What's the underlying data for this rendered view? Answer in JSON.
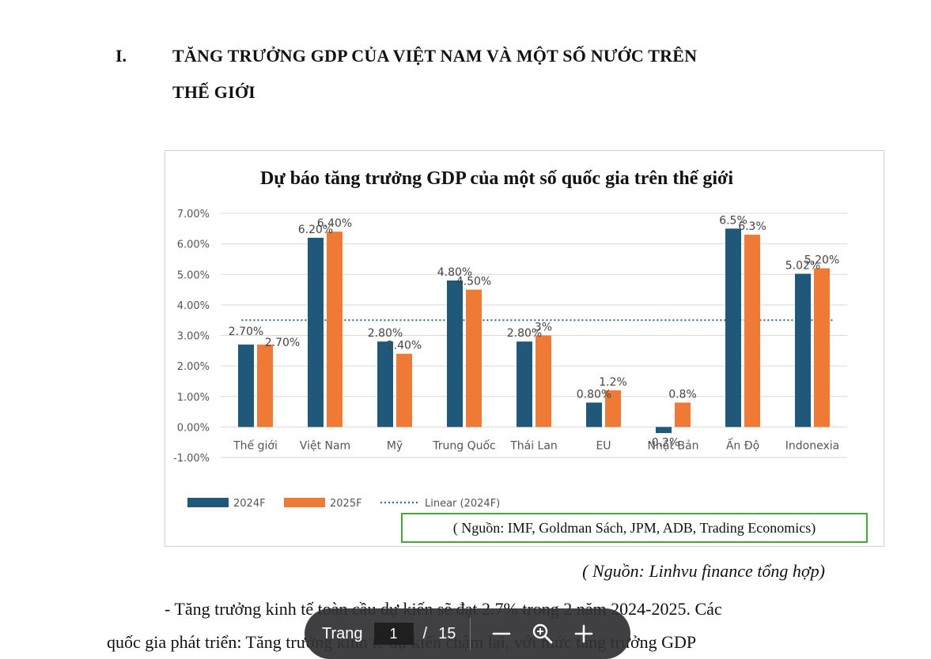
{
  "heading": {
    "number": "I.",
    "line1": "TĂNG TRƯỞNG GDP CỦA VIỆT NAM VÀ MỘT SỐ NƯỚC TRÊN",
    "line2": "THẾ GIỚI"
  },
  "chart_data": {
    "type": "bar",
    "title": "Dự báo tăng trưởng GDP của một số quốc gia trên thế giới",
    "categories": [
      "Thế giới",
      "Việt Nam",
      "Mỹ",
      "Trung Quốc",
      "Thái Lan",
      "EU",
      "Nhật Bản",
      "Ấn Độ",
      "Indonexia"
    ],
    "series": [
      {
        "name": "2024F",
        "values": [
          2.7,
          6.2,
          2.8,
          4.8,
          2.8,
          0.8,
          -0.2,
          6.5,
          5.02
        ],
        "labels": [
          "2.70%",
          "6.20%",
          "2.80%",
          "4.80%",
          "2.80%",
          "0.80%",
          "-0.2%",
          "6.5%",
          "5.02%"
        ]
      },
      {
        "name": "2025F",
        "values": [
          2.7,
          6.4,
          2.4,
          4.5,
          3.0,
          1.2,
          0.8,
          6.3,
          5.2
        ],
        "labels": [
          "2.70%",
          "6.40%",
          "2.40%",
          "4.50%",
          "3%",
          "1.2%",
          "0.8%",
          "6.3%",
          "5.20%"
        ]
      }
    ],
    "trendline": {
      "name": "Linear (2024F)",
      "value": 3.5
    },
    "ylim": [
      -1,
      7
    ],
    "yticks": [
      "-1.00%",
      "0.00%",
      "1.00%",
      "2.00%",
      "3.00%",
      "4.00%",
      "5.00%",
      "6.00%",
      "7.00%"
    ],
    "grid": true,
    "legend_position": "bottom-left",
    "colors": {
      "2024F": "#1f5878",
      "2025F": "#ee7a35",
      "trend": "#2e6f96"
    }
  },
  "chart_source": "( Nguồn: IMF, Goldman Sách, JPM, ADB, Trading Economics)",
  "caption": "( Nguồn: Linhvu finance tổng hợp)",
  "paragraph": {
    "line1": "- Tăng trưởng kinh tế toàn cầu dự kiến sẽ đạt 2.7% trong 2 năm 2024-2025. Các",
    "line2": "quốc gia phát triển: Tăng trưởng kinh tế dự kiến chậm lại, với mức tăng trưởng GDP"
  },
  "viewer": {
    "page_label": "Trang",
    "current_page": "1",
    "separator": "/",
    "total_pages": "15",
    "icons": [
      "zoom-out-icon",
      "zoom-search-icon",
      "zoom-in-icon"
    ]
  }
}
